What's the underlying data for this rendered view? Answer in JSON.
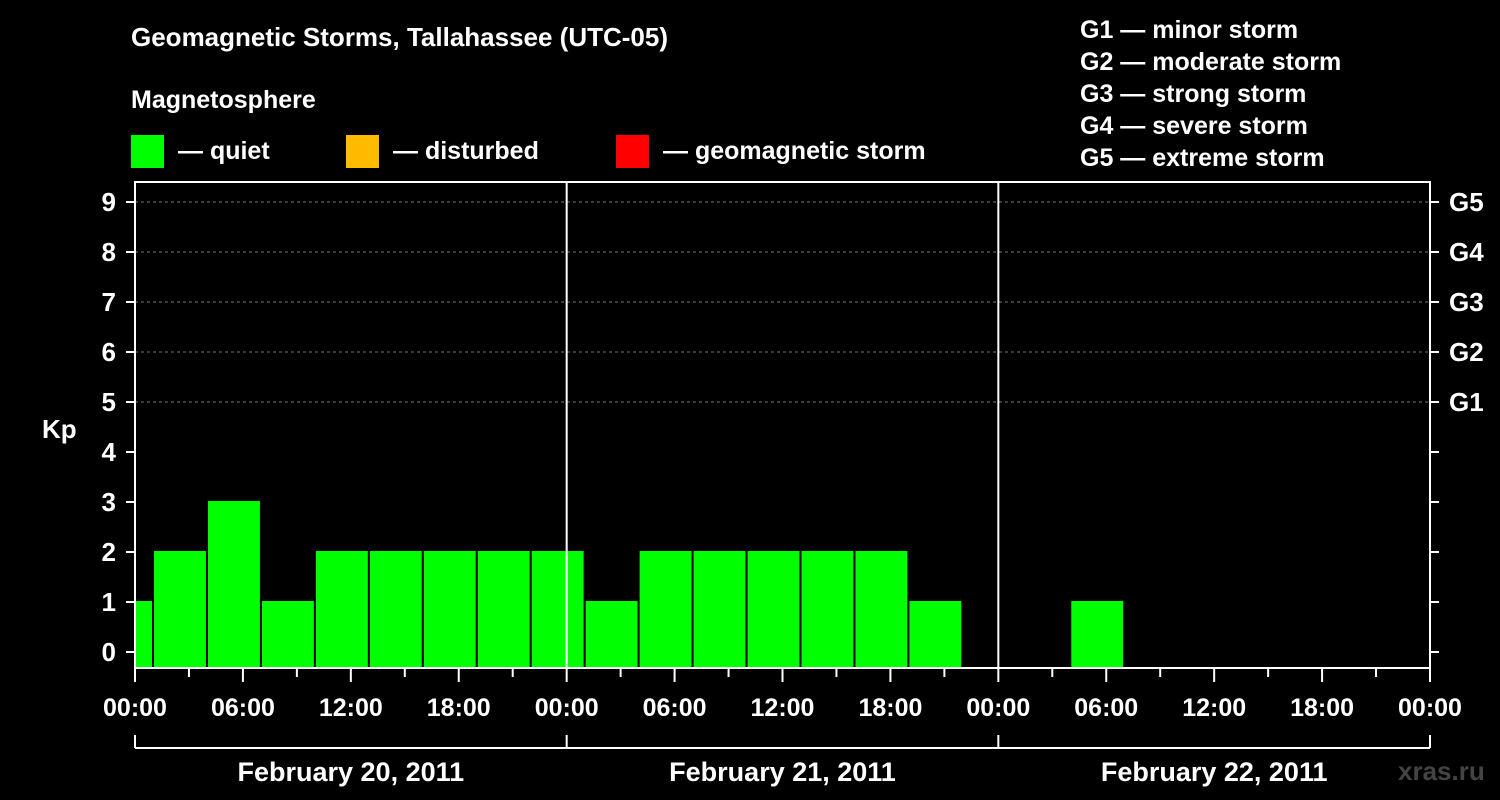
{
  "title": "Geomagnetic Storms, Tallahassee (UTC-05)",
  "legend": {
    "heading": "Magnetosphere",
    "items": [
      {
        "label": "— quiet",
        "color": "#00ff00"
      },
      {
        "label": "— disturbed",
        "color": "#ffbb00"
      },
      {
        "label": "— geomagnetic storm",
        "color": "#ff0000"
      }
    ]
  },
  "storm_scale": [
    "G1 — minor storm",
    "G2 — moderate storm",
    "G3 — strong storm",
    "G4 — severe storm",
    "G5 — extreme storm"
  ],
  "watermark": "xras.ru",
  "chart_data": {
    "type": "bar",
    "ylabel": "Kp",
    "ylim": [
      0,
      9
    ],
    "yticks": [
      "0",
      "1",
      "2",
      "3",
      "4",
      "5",
      "6",
      "7",
      "8",
      "9"
    ],
    "right_axis": [
      {
        "kp": 5,
        "label": "G1"
      },
      {
        "kp": 6,
        "label": "G2"
      },
      {
        "kp": 7,
        "label": "G3"
      },
      {
        "kp": 8,
        "label": "G4"
      },
      {
        "kp": 9,
        "label": "G5"
      }
    ],
    "xtick_labels": [
      "00:00",
      "06:00",
      "12:00",
      "18:00",
      "00:00",
      "06:00",
      "12:00",
      "18:00",
      "00:00",
      "06:00",
      "12:00",
      "18:00",
      "00:00"
    ],
    "dates": [
      "February 20, 2011",
      "February 21, 2011",
      "February 22, 2011"
    ],
    "bar_color": "#00ff00",
    "bars": [
      {
        "start": "2011-02-20 00:00",
        "end": "2011-02-20 01:00",
        "kp": 1
      },
      {
        "start": "2011-02-20 01:00",
        "end": "2011-02-20 04:00",
        "kp": 2
      },
      {
        "start": "2011-02-20 04:00",
        "end": "2011-02-20 07:00",
        "kp": 3
      },
      {
        "start": "2011-02-20 07:00",
        "end": "2011-02-20 10:00",
        "kp": 1
      },
      {
        "start": "2011-02-20 10:00",
        "end": "2011-02-20 13:00",
        "kp": 2
      },
      {
        "start": "2011-02-20 13:00",
        "end": "2011-02-20 16:00",
        "kp": 2
      },
      {
        "start": "2011-02-20 16:00",
        "end": "2011-02-20 19:00",
        "kp": 2
      },
      {
        "start": "2011-02-20 19:00",
        "end": "2011-02-20 22:00",
        "kp": 2
      },
      {
        "start": "2011-02-20 22:00",
        "end": "2011-02-21 01:00",
        "kp": 2
      },
      {
        "start": "2011-02-21 01:00",
        "end": "2011-02-21 04:00",
        "kp": 1
      },
      {
        "start": "2011-02-21 04:00",
        "end": "2011-02-21 07:00",
        "kp": 2
      },
      {
        "start": "2011-02-21 07:00",
        "end": "2011-02-21 10:00",
        "kp": 2
      },
      {
        "start": "2011-02-21 10:00",
        "end": "2011-02-21 13:00",
        "kp": 2
      },
      {
        "start": "2011-02-21 13:00",
        "end": "2011-02-21 16:00",
        "kp": 2
      },
      {
        "start": "2011-02-21 16:00",
        "end": "2011-02-21 19:00",
        "kp": 2
      },
      {
        "start": "2011-02-21 19:00",
        "end": "2011-02-21 22:00",
        "kp": 1
      },
      {
        "start": "2011-02-22 04:00",
        "end": "2011-02-22 07:00",
        "kp": 1
      }
    ]
  }
}
